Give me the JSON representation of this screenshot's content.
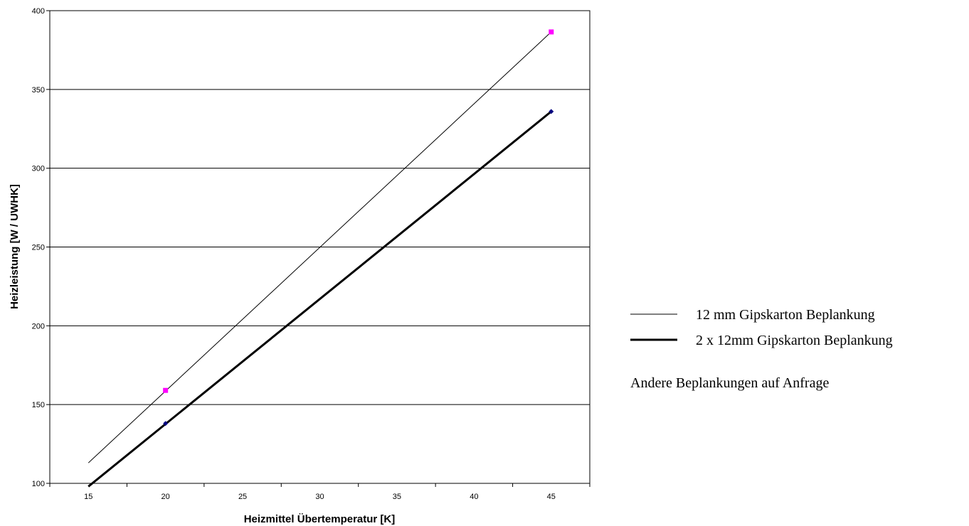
{
  "chart_data": {
    "type": "line",
    "xlabel": "Heizmittel Übertemperatur [K]",
    "ylabel": "Heizleistung [W / UWHK]",
    "xlim": [
      12.5,
      47.5
    ],
    "ylim": [
      100,
      400
    ],
    "xticks": [
      15,
      20,
      25,
      30,
      35,
      40,
      45
    ],
    "yticks": [
      100,
      150,
      200,
      250,
      300,
      350,
      400
    ],
    "grid": "horizontal",
    "legend_position": "right",
    "series": [
      {
        "name": "12 mm Gipskarton Beplankung",
        "color": "#000000",
        "marker_color": "#ff00ff",
        "marker": "square",
        "stroke": "thin",
        "line": {
          "x": [
            15,
            45
          ],
          "y": [
            113,
            386.5
          ]
        },
        "points": {
          "x": [
            20,
            45
          ],
          "y": [
            159,
            386.5
          ]
        }
      },
      {
        "name": "2 x 12mm Gipskarton Beplankung",
        "color": "#000000",
        "marker_color": "#000080",
        "marker": "diamond",
        "stroke": "thick",
        "line": {
          "x": [
            15,
            45
          ],
          "y": [
            98,
            336
          ]
        },
        "points": {
          "x": [
            20,
            45
          ],
          "y": [
            138,
            336
          ]
        }
      }
    ]
  },
  "note": "Andere Beplankungen auf Anfrage"
}
